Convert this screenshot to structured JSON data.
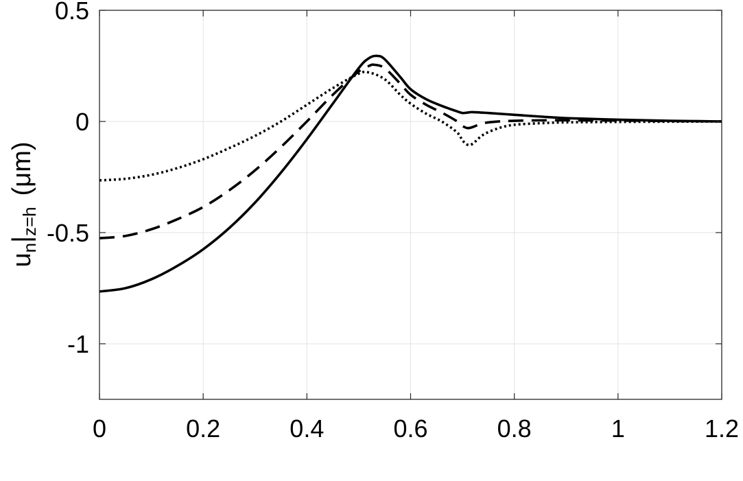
{
  "chart_data": {
    "type": "line",
    "xlabel": "",
    "ylabel": {
      "main": "u",
      "sub_n": "n",
      "bar": "|",
      "sub_z": "z=h",
      "unit": "(μm)"
    },
    "xlim": [
      0,
      1.2
    ],
    "ylim": [
      -1.25,
      0.5
    ],
    "xticks": [
      "0",
      "0.2",
      "0.4",
      "0.6",
      "0.8",
      "1",
      "1.2"
    ],
    "yticks": [
      "0.5",
      "0",
      "-0.5",
      "-1"
    ],
    "grid": true,
    "line_color": "#000000",
    "series": [
      {
        "style": "solid",
        "x": [
          0,
          0.05,
          0.1,
          0.15,
          0.2,
          0.25,
          0.3,
          0.35,
          0.4,
          0.45,
          0.5,
          0.52,
          0.535,
          0.55,
          0.58,
          0.6,
          0.63,
          0.66,
          0.69,
          0.7,
          0.71,
          0.72,
          0.75,
          0.8,
          0.85,
          0.9,
          1.0,
          1.1,
          1.2
        ],
        "y": [
          -0.765,
          -0.75,
          -0.71,
          -0.65,
          -0.575,
          -0.48,
          -0.365,
          -0.23,
          -0.08,
          0.08,
          0.24,
          0.285,
          0.295,
          0.28,
          0.2,
          0.145,
          0.1,
          0.07,
          0.045,
          0.038,
          0.04,
          0.042,
          0.038,
          0.03,
          0.022,
          0.015,
          0.008,
          0.003,
          0.0
        ]
      },
      {
        "style": "dashed",
        "x": [
          0,
          0.05,
          0.1,
          0.15,
          0.2,
          0.25,
          0.3,
          0.35,
          0.4,
          0.45,
          0.5,
          0.52,
          0.53,
          0.55,
          0.58,
          0.6,
          0.63,
          0.66,
          0.69,
          0.7,
          0.71,
          0.72,
          0.74,
          0.77,
          0.8,
          0.85,
          0.9,
          1.0,
          1.1,
          1.2
        ],
        "y": [
          -0.525,
          -0.515,
          -0.485,
          -0.44,
          -0.385,
          -0.31,
          -0.22,
          -0.115,
          0.0,
          0.12,
          0.225,
          0.25,
          0.255,
          0.24,
          0.17,
          0.12,
          0.075,
          0.04,
          0.0,
          -0.02,
          -0.03,
          -0.025,
          -0.008,
          0.0,
          0.003,
          0.005,
          0.005,
          0.004,
          0.002,
          0.0
        ]
      },
      {
        "style": "dotted",
        "x": [
          0,
          0.05,
          0.1,
          0.15,
          0.2,
          0.25,
          0.3,
          0.35,
          0.4,
          0.45,
          0.5,
          0.52,
          0.55,
          0.58,
          0.6,
          0.63,
          0.66,
          0.69,
          0.7,
          0.71,
          0.72,
          0.74,
          0.77,
          0.8,
          0.85,
          0.9,
          1.0,
          1.1,
          1.2
        ],
        "y": [
          -0.265,
          -0.258,
          -0.24,
          -0.21,
          -0.17,
          -0.12,
          -0.065,
          0.0,
          0.075,
          0.15,
          0.215,
          0.22,
          0.19,
          0.12,
          0.08,
          0.035,
          0.0,
          -0.05,
          -0.085,
          -0.105,
          -0.1,
          -0.06,
          -0.03,
          -0.015,
          -0.008,
          -0.004,
          -0.002,
          -0.001,
          0.0
        ]
      }
    ]
  }
}
